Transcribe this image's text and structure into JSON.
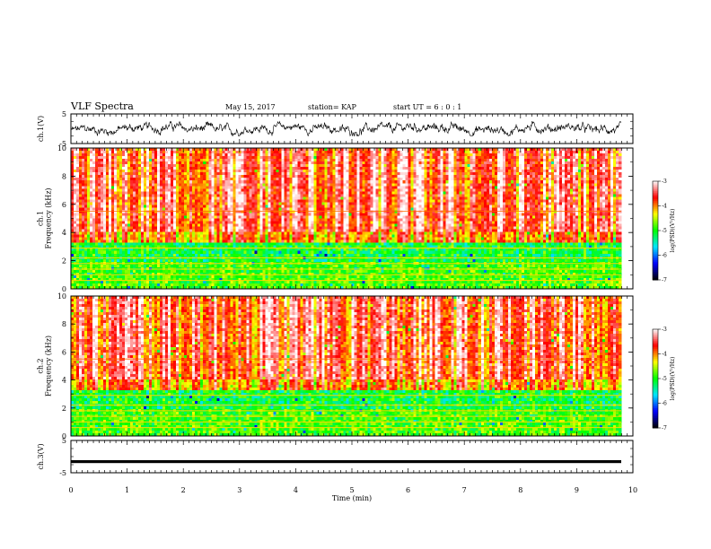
{
  "header": {
    "title": "VLF Spectra",
    "date": "May 15, 2017",
    "station": "station= KAP",
    "start": "start  UT  =   6 : 0  : 1"
  },
  "chart_data": [
    {
      "type": "line",
      "name": "channel-1-waveform",
      "ylabel": "ch.1(V)",
      "ylim": [
        -5,
        5
      ],
      "yticks": [
        "5",
        "-5"
      ],
      "xlim": [
        0,
        10
      ],
      "note_values": "voltage trace with values roughly between -2 and 2 V over 0 to 9.8 min"
    },
    {
      "type": "heatmap",
      "name": "channel-1-spectrogram",
      "ylabel": "ch.1\nFrequency  (kHz)",
      "ylim": [
        0,
        10
      ],
      "yticks": [
        "0",
        "2",
        "4",
        "6",
        "8",
        "10"
      ],
      "xlim": [
        0,
        9.8
      ],
      "colorbar": {
        "label": "log(PSD)(V²/Hz)",
        "range": [
          -7,
          -3
        ],
        "ticks": [
          "-3",
          "-4",
          "-5",
          "-6",
          "-7"
        ],
        "colors": [
          "#000000",
          "#0000ff",
          "#00e5ff",
          "#00ff00",
          "#ffff00",
          "#ff0000",
          "#ffffff"
        ]
      }
    },
    {
      "type": "heatmap",
      "name": "channel-2-spectrogram",
      "ylabel": "ch.2\nFrequency  (kHz)",
      "ylim": [
        0,
        10
      ],
      "yticks": [
        "0",
        "2",
        "4",
        "6",
        "8",
        "10"
      ],
      "xlim": [
        0,
        9.8
      ],
      "colorbar": {
        "label": "log(PSD)(V²/Hz)",
        "range": [
          -7,
          -3
        ],
        "ticks": [
          "-3",
          "-4",
          "-5",
          "-6",
          "-7"
        ],
        "colors": [
          "#000000",
          "#0000ff",
          "#00e5ff",
          "#00ff00",
          "#ffff00",
          "#ff0000",
          "#ffffff"
        ]
      }
    },
    {
      "type": "line",
      "name": "channel-3-waveform",
      "ylabel": "ch.3(V)",
      "ylim": [
        -5,
        5
      ],
      "yticks": [
        "5",
        "-5"
      ],
      "xlim": [
        0,
        10
      ],
      "note_values": "near-constant trace at about -1.5 V"
    }
  ],
  "xaxis": {
    "label": "Time  (min)",
    "ticks": [
      "0",
      "1",
      "2",
      "3",
      "4",
      "5",
      "6",
      "7",
      "8",
      "9",
      "10"
    ]
  }
}
